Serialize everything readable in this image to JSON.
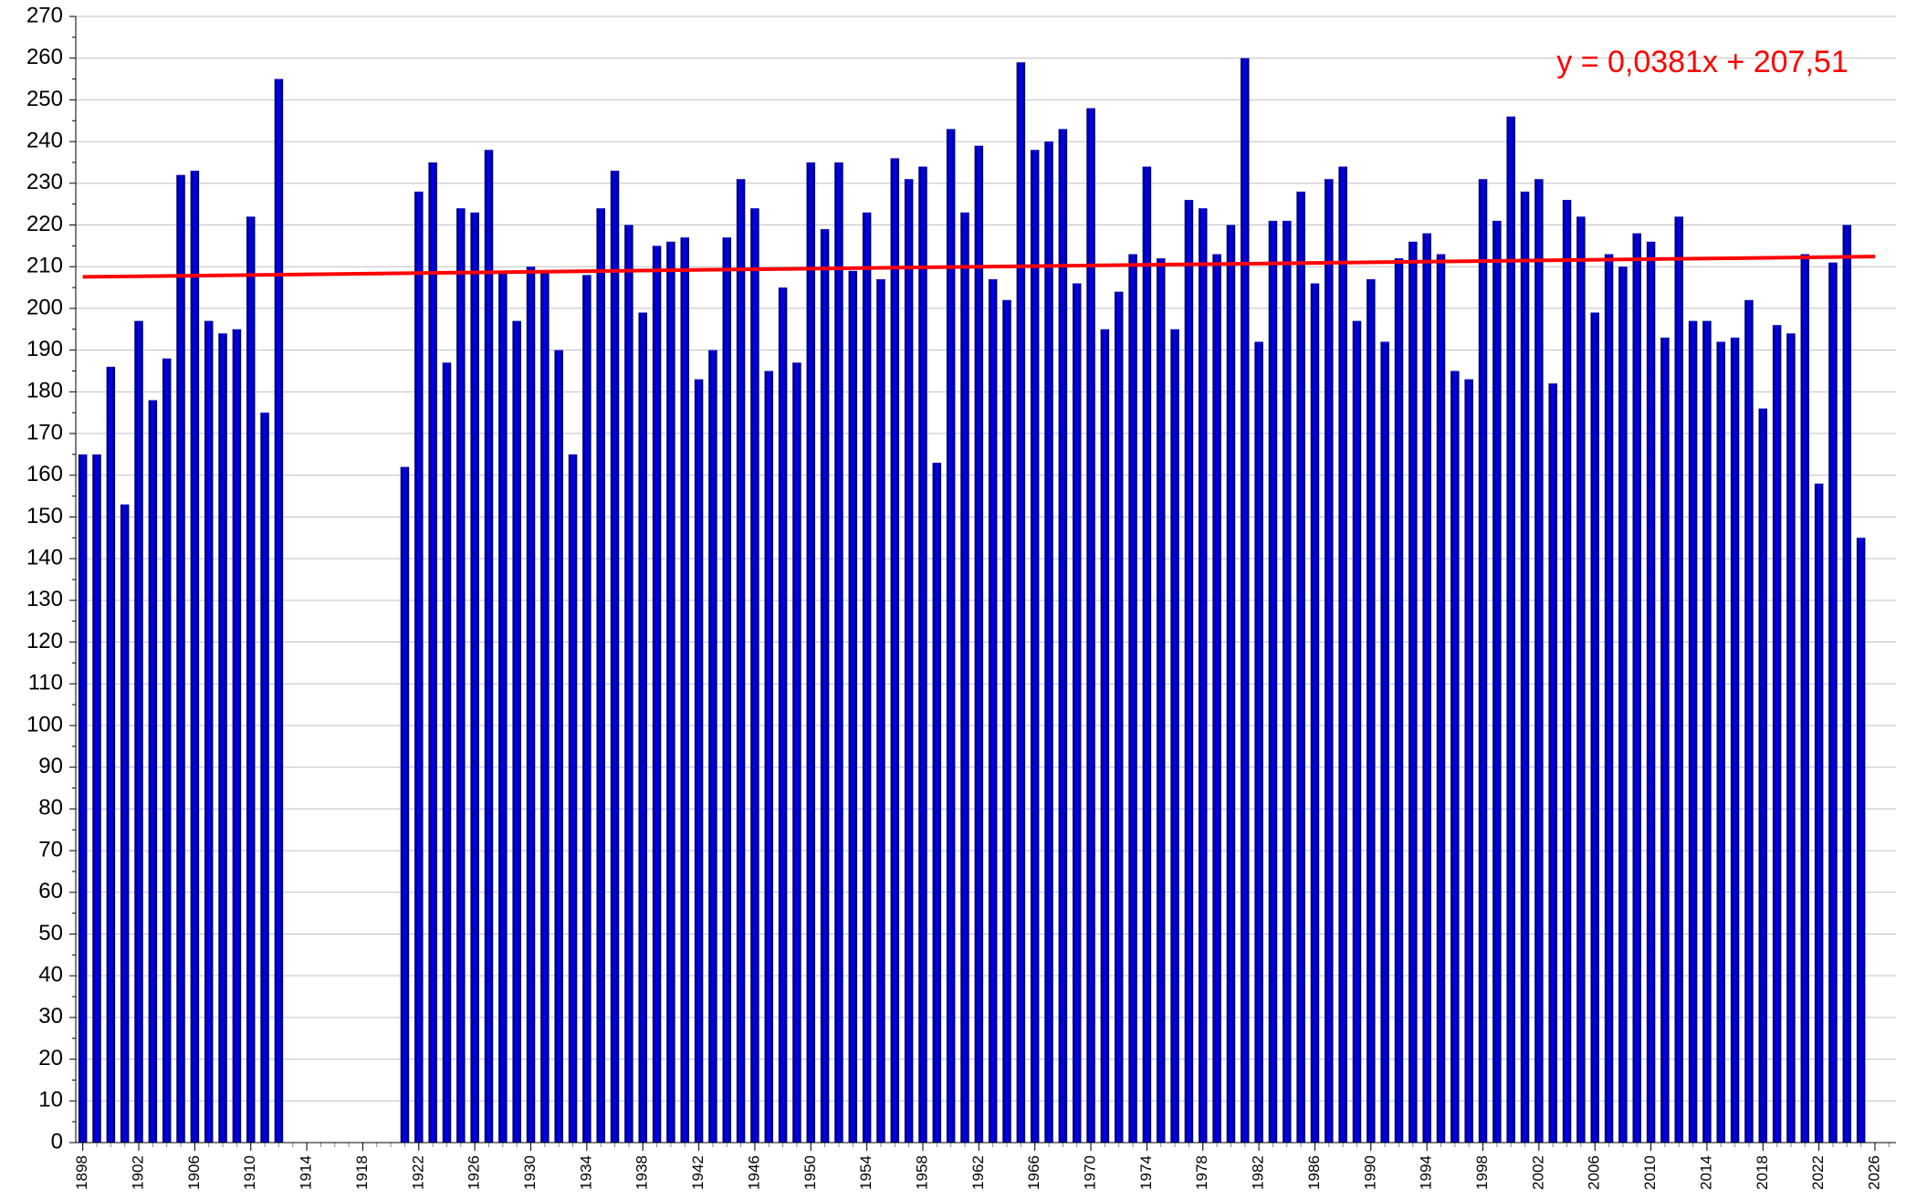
{
  "chart_data": {
    "type": "bar",
    "x": [
      1898,
      1899,
      1900,
      1901,
      1902,
      1903,
      1904,
      1905,
      1906,
      1907,
      1908,
      1909,
      1910,
      1911,
      1912,
      1921,
      1922,
      1923,
      1924,
      1925,
      1926,
      1927,
      1928,
      1929,
      1930,
      1931,
      1932,
      1933,
      1934,
      1935,
      1936,
      1937,
      1938,
      1939,
      1940,
      1941,
      1942,
      1943,
      1944,
      1945,
      1946,
      1947,
      1948,
      1949,
      1950,
      1951,
      1952,
      1953,
      1954,
      1955,
      1956,
      1957,
      1958,
      1959,
      1960,
      1961,
      1962,
      1963,
      1964,
      1965,
      1966,
      1967,
      1968,
      1969,
      1970,
      1971,
      1972,
      1973,
      1974,
      1975,
      1976,
      1977,
      1978,
      1979,
      1980,
      1981,
      1982,
      1983,
      1984,
      1985,
      1986,
      1987,
      1988,
      1989,
      1990,
      1991,
      1992,
      1993,
      1994,
      1995,
      1996,
      1997,
      1998,
      1999,
      2000,
      2001,
      2002,
      2003,
      2004,
      2005,
      2006,
      2007,
      2008,
      2009,
      2010,
      2011,
      2012,
      2013,
      2014,
      2015,
      2016,
      2017,
      2018,
      2019,
      2020,
      2021,
      2022,
      2023,
      2024,
      2025
    ],
    "values": [
      165,
      165,
      186,
      153,
      197,
      178,
      188,
      232,
      233,
      197,
      194,
      195,
      222,
      175,
      255,
      162,
      228,
      235,
      187,
      224,
      223,
      238,
      209,
      197,
      210,
      209,
      190,
      165,
      208,
      224,
      233,
      220,
      199,
      215,
      216,
      217,
      183,
      190,
      217,
      231,
      224,
      185,
      205,
      187,
      235,
      219,
      235,
      209,
      223,
      207,
      236,
      231,
      234,
      163,
      243,
      223,
      239,
      207,
      202,
      259,
      238,
      240,
      243,
      206,
      248,
      195,
      204,
      213,
      234,
      212,
      195,
      226,
      224,
      213,
      220,
      260,
      192,
      221,
      221,
      228,
      206,
      231,
      234,
      197,
      207,
      192,
      212,
      216,
      218,
      213,
      185,
      183,
      231,
      221,
      246,
      228,
      231,
      182,
      226,
      222,
      199,
      213,
      210,
      218,
      216,
      193,
      222,
      197,
      197,
      192,
      193,
      202,
      176,
      196,
      194,
      213,
      158,
      211,
      220,
      145
    ],
    "color": "#0000ff",
    "xlim": [
      1897.5,
      2027.5
    ],
    "xticks": [
      1898,
      1902,
      1906,
      1910,
      1914,
      1918,
      1922,
      1926,
      1930,
      1934,
      1938,
      1942,
      1946,
      1950,
      1954,
      1958,
      1962,
      1966,
      1970,
      1974,
      1978,
      1982,
      1986,
      1990,
      1994,
      1998,
      2002,
      2006,
      2010,
      2014,
      2018,
      2022,
      2026
    ],
    "ylim": [
      0,
      270
    ],
    "yticks": [
      0,
      10,
      20,
      30,
      40,
      50,
      60,
      70,
      80,
      90,
      100,
      110,
      120,
      130,
      140,
      150,
      160,
      170,
      180,
      190,
      200,
      210,
      220,
      230,
      240,
      250,
      260,
      270
    ],
    "grid": true,
    "trendline": {
      "equation": "y = 0,0381x + 207,51",
      "slope": 0.0381,
      "intercept": 207.51,
      "color": "#ff0000",
      "x": [
        1898,
        2026
      ]
    }
  }
}
